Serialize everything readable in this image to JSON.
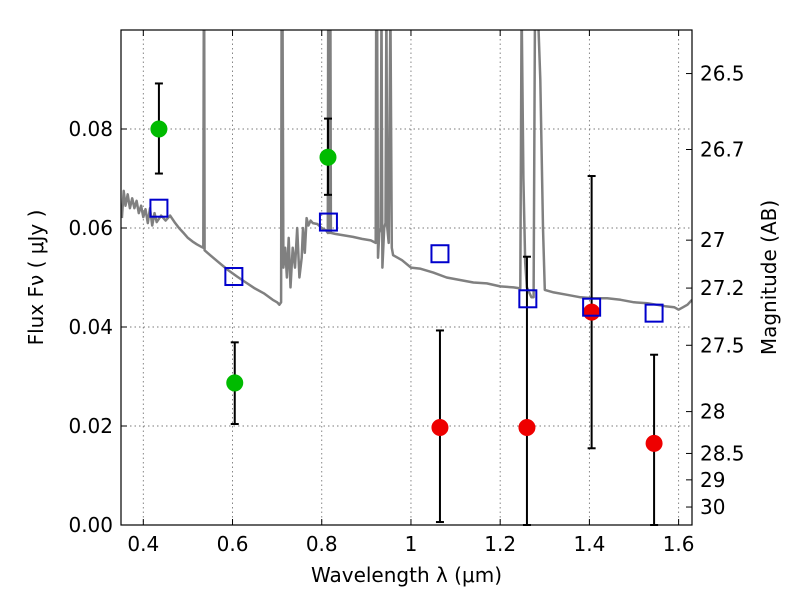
{
  "chart_data": {
    "type": "scatter",
    "xlabel": "Wavelength  λ (μm)",
    "ylabel": "Flux  Fν  ( μJy )",
    "ylabel_right": "Magnitude (AB)",
    "xlim": [
      0.35,
      1.63
    ],
    "ylim": [
      0.0,
      0.1
    ],
    "grid": true,
    "x_ticks": [
      0.4,
      0.6,
      0.8,
      1.0,
      1.2,
      1.4,
      1.6
    ],
    "x_tick_labels": [
      "0.4",
      "0.6",
      "0.8",
      "1",
      "1.2",
      "1.4",
      "1.6"
    ],
    "y_ticks": [
      0.0,
      0.02,
      0.04,
      0.06,
      0.08
    ],
    "y_tick_labels": [
      "0.00",
      "0.02",
      "0.04",
      "0.06",
      "0.08"
    ],
    "right_ticks": [
      {
        "label": "26.5",
        "mag": 26.5
      },
      {
        "label": "26.7",
        "mag": 26.7
      },
      {
        "label": "27",
        "mag": 27.0
      },
      {
        "label": "27.2",
        "mag": 27.2
      },
      {
        "label": "27.5",
        "mag": 27.5
      },
      {
        "label": "28",
        "mag": 28.0
      },
      {
        "label": "28.5",
        "mag": 28.5
      },
      {
        "label": "29",
        "mag": 29.0
      },
      {
        "label": "30",
        "mag": 30.0
      }
    ],
    "colors": {
      "green": "#00bb00",
      "red": "#ee0000",
      "blue_square": "#0000cc",
      "model": "#808080",
      "errorbar": "#000000"
    },
    "series": [
      {
        "marker": "circle",
        "color": "green",
        "points": [
          {
            "x": 0.435,
            "y": 0.08,
            "yerr": [
              0.009,
              0.0092
            ]
          },
          {
            "x": 0.605,
            "y": 0.0287,
            "yerr": [
              0.0083,
              0.0082
            ]
          },
          {
            "x": 0.814,
            "y": 0.0743,
            "yerr": [
              0.0076,
              0.0078
            ]
          }
        ]
      },
      {
        "marker": "circle",
        "color": "red",
        "points": [
          {
            "x": 1.065,
            "y": 0.0197,
            "yerr": [
              0.0191,
              0.0196
            ]
          },
          {
            "x": 1.26,
            "y": 0.0197,
            "yerr": [
              0.0197,
              0.0345
            ]
          },
          {
            "x": 1.405,
            "y": 0.043,
            "yerr": [
              0.0275,
              0.0275
            ]
          },
          {
            "x": 1.545,
            "y": 0.0165,
            "yerr": [
              0.0165,
              0.0179
            ]
          }
        ]
      },
      {
        "marker": "square",
        "color": "blue_square",
        "points": [
          {
            "x": 0.435,
            "y": 0.064
          },
          {
            "x": 0.603,
            "y": 0.0502
          },
          {
            "x": 0.815,
            "y": 0.0612
          },
          {
            "x": 1.065,
            "y": 0.0548
          },
          {
            "x": 1.262,
            "y": 0.0457
          },
          {
            "x": 1.405,
            "y": 0.044
          },
          {
            "x": 1.545,
            "y": 0.0428
          }
        ]
      }
    ],
    "model_spectrum": [
      [
        0.352,
        0.062
      ],
      [
        0.356,
        0.0675
      ],
      [
        0.36,
        0.0645
      ],
      [
        0.365,
        0.0668
      ],
      [
        0.37,
        0.064
      ],
      [
        0.375,
        0.066
      ],
      [
        0.38,
        0.064
      ],
      [
        0.385,
        0.0655
      ],
      [
        0.39,
        0.063
      ],
      [
        0.395,
        0.0645
      ],
      [
        0.4,
        0.0622
      ],
      [
        0.405,
        0.0638
      ],
      [
        0.41,
        0.061
      ],
      [
        0.415,
        0.064
      ],
      [
        0.42,
        0.0605
      ],
      [
        0.425,
        0.063
      ],
      [
        0.43,
        0.0612
      ],
      [
        0.44,
        0.0625
      ],
      [
        0.45,
        0.0615
      ],
      [
        0.46,
        0.0625
      ],
      [
        0.47,
        0.0612
      ],
      [
        0.48,
        0.06
      ],
      [
        0.49,
        0.059
      ],
      [
        0.5,
        0.058
      ],
      [
        0.51,
        0.0573
      ],
      [
        0.52,
        0.0567
      ],
      [
        0.53,
        0.0562
      ],
      [
        0.5345,
        0.056
      ],
      [
        0.5355,
        0.105
      ],
      [
        0.5365,
        0.105
      ],
      [
        0.5375,
        0.0555
      ],
      [
        0.55,
        0.0545
      ],
      [
        0.57,
        0.053
      ],
      [
        0.59,
        0.0515
      ],
      [
        0.61,
        0.0502
      ],
      [
        0.63,
        0.049
      ],
      [
        0.65,
        0.0478
      ],
      [
        0.67,
        0.0468
      ],
      [
        0.69,
        0.0455
      ],
      [
        0.7,
        0.045
      ],
      [
        0.705,
        0.0445
      ],
      [
        0.709,
        0.045
      ],
      [
        0.71,
        0.105
      ],
      [
        0.712,
        0.105
      ],
      [
        0.714,
        0.052
      ],
      [
        0.718,
        0.056
      ],
      [
        0.722,
        0.05
      ],
      [
        0.726,
        0.058
      ],
      [
        0.73,
        0.048
      ],
      [
        0.735,
        0.056
      ],
      [
        0.74,
        0.052
      ],
      [
        0.745,
        0.06
      ],
      [
        0.75,
        0.05
      ],
      [
        0.755,
        0.054
      ],
      [
        0.758,
        0.06
      ],
      [
        0.762,
        0.055
      ],
      [
        0.766,
        0.062
      ],
      [
        0.77,
        0.0605
      ],
      [
        0.775,
        0.0615
      ],
      [
        0.78,
        0.061
      ],
      [
        0.79,
        0.0608
      ],
      [
        0.8,
        0.06
      ],
      [
        0.81,
        0.0595
      ],
      [
        0.8135,
        0.059
      ],
      [
        0.8145,
        0.105
      ],
      [
        0.8155,
        0.059
      ],
      [
        0.819,
        0.059
      ],
      [
        0.8195,
        0.105
      ],
      [
        0.8205,
        0.059
      ],
      [
        0.83,
        0.0588
      ],
      [
        0.85,
        0.0585
      ],
      [
        0.87,
        0.0582
      ],
      [
        0.89,
        0.0578
      ],
      [
        0.91,
        0.0575
      ],
      [
        0.921,
        0.057
      ],
      [
        0.922,
        0.105
      ],
      [
        0.924,
        0.105
      ],
      [
        0.926,
        0.054
      ],
      [
        0.929,
        0.059
      ],
      [
        0.932,
        0.06
      ],
      [
        0.934,
        0.105
      ],
      [
        0.936,
        0.052
      ],
      [
        0.94,
        0.06
      ],
      [
        0.943,
        0.061
      ],
      [
        0.945,
        0.105
      ],
      [
        0.947,
        0.06
      ],
      [
        0.95,
        0.057
      ],
      [
        0.954,
        0.105
      ],
      [
        0.957,
        0.056
      ],
      [
        0.96,
        0.0545
      ],
      [
        0.97,
        0.054
      ],
      [
        0.98,
        0.0535
      ],
      [
        1.0,
        0.052
      ],
      [
        1.02,
        0.0518
      ],
      [
        1.05,
        0.051
      ],
      [
        1.08,
        0.05
      ],
      [
        1.11,
        0.0495
      ],
      [
        1.14,
        0.049
      ],
      [
        1.17,
        0.0488
      ],
      [
        1.2,
        0.0482
      ],
      [
        1.23,
        0.048
      ],
      [
        1.245,
        0.0478
      ],
      [
        1.248,
        0.105
      ],
      [
        1.252,
        0.07
      ],
      [
        1.256,
        0.053
      ],
      [
        1.26,
        0.048
      ],
      [
        1.265,
        0.047
      ],
      [
        1.27,
        0.046
      ],
      [
        1.275,
        0.046
      ],
      [
        1.278,
        0.105
      ],
      [
        1.284,
        0.105
      ],
      [
        1.29,
        0.09
      ],
      [
        1.296,
        0.06
      ],
      [
        1.3,
        0.0475
      ],
      [
        1.32,
        0.047
      ],
      [
        1.35,
        0.0465
      ],
      [
        1.38,
        0.046
      ],
      [
        1.41,
        0.0458
      ],
      [
        1.44,
        0.0458
      ],
      [
        1.47,
        0.0455
      ],
      [
        1.5,
        0.045
      ],
      [
        1.53,
        0.0448
      ],
      [
        1.55,
        0.0445
      ],
      [
        1.57,
        0.0442
      ],
      [
        1.59,
        0.044
      ],
      [
        1.6,
        0.0435
      ],
      [
        1.61,
        0.044
      ],
      [
        1.62,
        0.0445
      ],
      [
        1.63,
        0.0455
      ]
    ]
  }
}
